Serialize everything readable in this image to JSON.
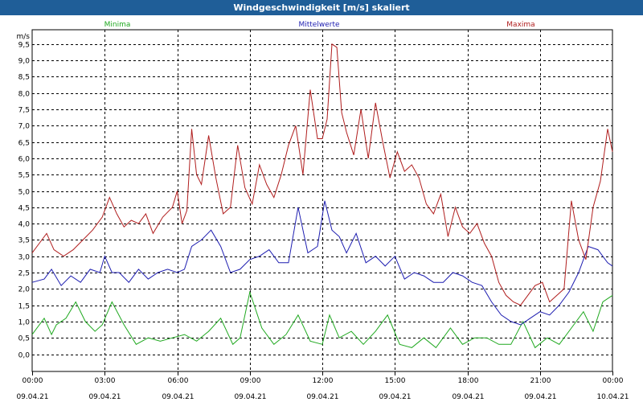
{
  "window": {
    "title": "Windgeschwindigkeit [m/s] skaliert"
  },
  "chart_data": {
    "type": "line",
    "title": "Windgeschwindigkeit [m/s] skaliert",
    "ylabel": "m/s",
    "xlabel": "",
    "ylim": [
      -0.5,
      10.2
    ],
    "yticks": [
      0.0,
      0.5,
      1.0,
      1.5,
      2.0,
      2.5,
      3.0,
      3.5,
      4.0,
      4.5,
      5.0,
      5.5,
      6.0,
      6.5,
      7.0,
      7.5,
      8.0,
      8.5,
      9.0,
      9.5
    ],
    "ytick_labels": [
      "0,0",
      "0,5",
      "1,0",
      "1,5",
      "2,0",
      "2,5",
      "3,0",
      "3,5",
      "4,0",
      "4,5",
      "5,0",
      "5,5",
      "6,0",
      "6,5",
      "7,0",
      "7,5",
      "8,0",
      "8,5",
      "9,0",
      "9,5"
    ],
    "xlim": [
      0,
      24
    ],
    "xticks": [
      {
        "x": 0,
        "time": "00:00",
        "date": "09.04.21"
      },
      {
        "x": 3,
        "time": "03:00",
        "date": "09.04.21"
      },
      {
        "x": 6,
        "time": "06:00",
        "date": "09.04.21"
      },
      {
        "x": 9,
        "time": "09:00",
        "date": "09.04.21"
      },
      {
        "x": 12,
        "time": "12:00",
        "date": "09.04.21"
      },
      {
        "x": 15,
        "time": "15:00",
        "date": "09.04.21"
      },
      {
        "x": 18,
        "time": "18:00",
        "date": "09.04.21"
      },
      {
        "x": 21,
        "time": "21:00",
        "date": "09.04.21"
      },
      {
        "x": 24,
        "time": "00:00",
        "date": "10.04.21"
      }
    ],
    "grid": true,
    "legend_placement": "top",
    "series": [
      {
        "name": "Minima",
        "color": "#1fa81f",
        "x": [
          0,
          0.5,
          0.8,
          1,
          1.4,
          1.8,
          2.2,
          2.6,
          2.9,
          3.3,
          3.8,
          4.3,
          4.8,
          5.3,
          5.8,
          6.3,
          6.8,
          7.3,
          7.8,
          8.3,
          8.6,
          9.0,
          9.5,
          10,
          10.5,
          11,
          11.5,
          12,
          12.3,
          12.7,
          13.2,
          13.7,
          14.2,
          14.7,
          15.2,
          15.7,
          16.2,
          16.7,
          17.3,
          17.8,
          18.3,
          18.8,
          19.3,
          19.8,
          20.3,
          20.8,
          21.3,
          21.8,
          22.3,
          22.8,
          23.2,
          23.6,
          24
        ],
        "y": [
          0.6,
          1.1,
          0.6,
          0.9,
          1.1,
          1.6,
          1.0,
          0.7,
          0.9,
          1.6,
          0.9,
          0.3,
          0.5,
          0.4,
          0.5,
          0.6,
          0.4,
          0.7,
          1.1,
          0.3,
          0.5,
          1.9,
          0.8,
          0.3,
          0.6,
          1.2,
          0.4,
          0.3,
          1.2,
          0.5,
          0.7,
          0.3,
          0.7,
          1.2,
          0.3,
          0.2,
          0.5,
          0.2,
          0.8,
          0.3,
          0.5,
          0.5,
          0.3,
          0.3,
          1.0,
          0.2,
          0.5,
          0.3,
          0.8,
          1.3,
          0.7,
          1.6,
          1.8
        ]
      },
      {
        "name": "Mittelwerte",
        "color": "#1d1db0",
        "x": [
          0,
          0.5,
          0.8,
          1.2,
          1.6,
          2.0,
          2.4,
          2.8,
          3.0,
          3.3,
          3.6,
          4.0,
          4.4,
          4.8,
          5.2,
          5.6,
          6.0,
          6.3,
          6.6,
          7.0,
          7.4,
          7.8,
          8.2,
          8.6,
          9.0,
          9.4,
          9.8,
          10.2,
          10.6,
          11.0,
          11.4,
          11.8,
          12.1,
          12.4,
          12.7,
          13.0,
          13.4,
          13.8,
          14.2,
          14.6,
          15.0,
          15.4,
          15.8,
          16.2,
          16.6,
          17.0,
          17.4,
          17.8,
          18.2,
          18.6,
          19.0,
          19.4,
          19.8,
          20.2,
          20.6,
          21.0,
          21.4,
          21.8,
          22.2,
          22.6,
          23.0,
          23.4,
          23.8,
          24
        ],
        "y": [
          2.2,
          2.3,
          2.6,
          2.1,
          2.4,
          2.2,
          2.6,
          2.5,
          3.0,
          2.5,
          2.5,
          2.2,
          2.6,
          2.3,
          2.5,
          2.6,
          2.5,
          2.6,
          3.3,
          3.5,
          3.8,
          3.3,
          2.5,
          2.6,
          2.9,
          3.0,
          3.2,
          2.8,
          2.8,
          4.5,
          3.1,
          3.3,
          4.7,
          3.8,
          3.6,
          3.1,
          3.7,
          2.8,
          3.0,
          2.7,
          3.0,
          2.3,
          2.5,
          2.4,
          2.2,
          2.2,
          2.5,
          2.4,
          2.2,
          2.1,
          1.6,
          1.2,
          1.0,
          0.9,
          1.1,
          1.3,
          1.2,
          1.5,
          1.9,
          2.5,
          3.3,
          3.2,
          2.8,
          2.7
        ]
      },
      {
        "name": "Maxima",
        "color": "#b01d1d",
        "x": [
          0,
          0.3,
          0.6,
          0.9,
          1.3,
          1.7,
          2.1,
          2.5,
          2.9,
          3.2,
          3.5,
          3.8,
          4.1,
          4.4,
          4.7,
          5.0,
          5.4,
          5.8,
          6.0,
          6.2,
          6.4,
          6.6,
          6.8,
          7.0,
          7.3,
          7.6,
          7.9,
          8.2,
          8.5,
          8.8,
          9.1,
          9.4,
          9.7,
          10.0,
          10.3,
          10.6,
          10.9,
          11.2,
          11.5,
          11.8,
          12.0,
          12.2,
          12.4,
          12.6,
          12.8,
          13.0,
          13.3,
          13.6,
          13.9,
          14.2,
          14.5,
          14.8,
          15.1,
          15.4,
          15.7,
          16.0,
          16.3,
          16.6,
          16.9,
          17.2,
          17.5,
          17.8,
          18.1,
          18.4,
          18.7,
          19.0,
          19.3,
          19.6,
          19.9,
          20.2,
          20.5,
          20.8,
          21.1,
          21.4,
          21.7,
          22.0,
          22.3,
          22.6,
          22.9,
          23.2,
          23.5,
          23.8,
          24
        ],
        "y": [
          3.1,
          3.4,
          3.7,
          3.2,
          3.0,
          3.2,
          3.5,
          3.8,
          4.2,
          4.8,
          4.3,
          3.9,
          4.1,
          4.0,
          4.3,
          3.7,
          4.2,
          4.5,
          5.0,
          4.0,
          4.4,
          6.9,
          5.5,
          5.2,
          6.7,
          5.4,
          4.3,
          4.5,
          6.4,
          5.1,
          4.6,
          5.8,
          5.2,
          4.8,
          5.5,
          6.4,
          7.0,
          5.5,
          8.1,
          6.6,
          6.6,
          7.2,
          9.5,
          9.4,
          7.4,
          6.8,
          6.1,
          7.5,
          6.0,
          7.7,
          6.5,
          5.4,
          6.2,
          5.6,
          5.8,
          5.4,
          4.6,
          4.3,
          4.9,
          3.6,
          4.5,
          3.9,
          3.7,
          4.0,
          3.4,
          3.0,
          2.2,
          1.8,
          1.6,
          1.5,
          1.8,
          2.1,
          2.2,
          1.6,
          1.8,
          2.0,
          4.7,
          3.5,
          2.9,
          4.5,
          5.3,
          6.9,
          6.2
        ]
      }
    ]
  }
}
